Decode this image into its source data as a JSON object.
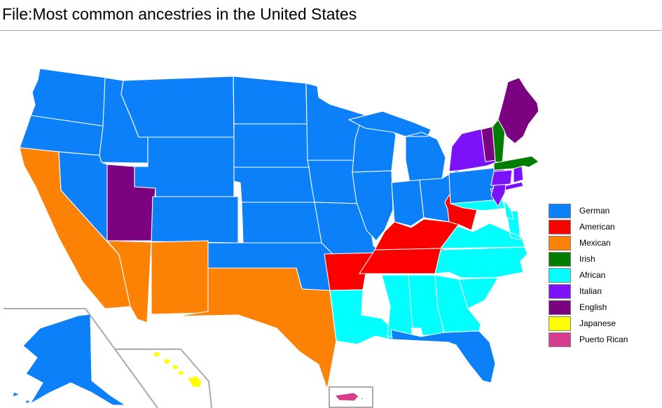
{
  "header": {
    "title": "File:Most common ancestries in the United States"
  },
  "legend": {
    "items": [
      {
        "label": "German",
        "color": "#0c80f8"
      },
      {
        "label": "American",
        "color": "#fc0000"
      },
      {
        "label": "Mexican",
        "color": "#fc8205"
      },
      {
        "label": "Irish",
        "color": "#027d02"
      },
      {
        "label": "African",
        "color": "#00ffff"
      },
      {
        "label": "Italian",
        "color": "#7c12fa"
      },
      {
        "label": "English",
        "color": "#7b0382"
      },
      {
        "label": "Japanese",
        "color": "#fefe00"
      },
      {
        "label": "Puerto Rican",
        "color": "#d63d8d"
      }
    ]
  },
  "map": {
    "type": "choropleth",
    "state_border_color": "#ffffff",
    "inset_line_color": "#aaaaaa",
    "states": [
      {
        "code": "WA",
        "name": "Washington",
        "ancestry": "German"
      },
      {
        "code": "OR",
        "name": "Oregon",
        "ancestry": "German"
      },
      {
        "code": "CA",
        "name": "California",
        "ancestry": "Mexican"
      },
      {
        "code": "NV",
        "name": "Nevada",
        "ancestry": "German"
      },
      {
        "code": "ID",
        "name": "Idaho",
        "ancestry": "German"
      },
      {
        "code": "MT",
        "name": "Montana",
        "ancestry": "German"
      },
      {
        "code": "WY",
        "name": "Wyoming",
        "ancestry": "German"
      },
      {
        "code": "UT",
        "name": "Utah",
        "ancestry": "English"
      },
      {
        "code": "CO",
        "name": "Colorado",
        "ancestry": "German"
      },
      {
        "code": "AZ",
        "name": "Arizona",
        "ancestry": "Mexican"
      },
      {
        "code": "NM",
        "name": "New Mexico",
        "ancestry": "Mexican"
      },
      {
        "code": "ND",
        "name": "North Dakota",
        "ancestry": "German"
      },
      {
        "code": "SD",
        "name": "South Dakota",
        "ancestry": "German"
      },
      {
        "code": "NE",
        "name": "Nebraska",
        "ancestry": "German"
      },
      {
        "code": "KS",
        "name": "Kansas",
        "ancestry": "German"
      },
      {
        "code": "OK",
        "name": "Oklahoma",
        "ancestry": "German"
      },
      {
        "code": "TX",
        "name": "Texas",
        "ancestry": "Mexican"
      },
      {
        "code": "MN",
        "name": "Minnesota",
        "ancestry": "German"
      },
      {
        "code": "IA",
        "name": "Iowa",
        "ancestry": "German"
      },
      {
        "code": "MO",
        "name": "Missouri",
        "ancestry": "German"
      },
      {
        "code": "AR",
        "name": "Arkansas",
        "ancestry": "American"
      },
      {
        "code": "LA",
        "name": "Louisiana",
        "ancestry": "African"
      },
      {
        "code": "WI",
        "name": "Wisconsin",
        "ancestry": "German"
      },
      {
        "code": "IL",
        "name": "Illinois",
        "ancestry": "German"
      },
      {
        "code": "MI",
        "name": "Michigan",
        "ancestry": "German"
      },
      {
        "code": "IN",
        "name": "Indiana",
        "ancestry": "German"
      },
      {
        "code": "OH",
        "name": "Ohio",
        "ancestry": "German"
      },
      {
        "code": "KY",
        "name": "Kentucky",
        "ancestry": "American"
      },
      {
        "code": "TN",
        "name": "Tennessee",
        "ancestry": "American"
      },
      {
        "code": "MS",
        "name": "Mississippi",
        "ancestry": "African"
      },
      {
        "code": "AL",
        "name": "Alabama",
        "ancestry": "African"
      },
      {
        "code": "GA",
        "name": "Georgia",
        "ancestry": "African"
      },
      {
        "code": "FL",
        "name": "Florida",
        "ancestry": "German"
      },
      {
        "code": "VA",
        "name": "Virginia",
        "ancestry": "African"
      },
      {
        "code": "WV",
        "name": "West Virginia",
        "ancestry": "American"
      },
      {
        "code": "NC",
        "name": "North Carolina",
        "ancestry": "African"
      },
      {
        "code": "SC",
        "name": "South Carolina",
        "ancestry": "African"
      },
      {
        "code": "PA",
        "name": "Pennsylvania",
        "ancestry": "German"
      },
      {
        "code": "NY",
        "name": "New York",
        "ancestry": "Italian"
      },
      {
        "code": "MD",
        "name": "Maryland",
        "ancestry": "African"
      },
      {
        "code": "DE",
        "name": "Delaware",
        "ancestry": "African"
      },
      {
        "code": "NJ",
        "name": "New Jersey",
        "ancestry": "Italian"
      },
      {
        "code": "CT",
        "name": "Connecticut",
        "ancestry": "Italian"
      },
      {
        "code": "RI",
        "name": "Rhode Island",
        "ancestry": "Italian"
      },
      {
        "code": "VT",
        "name": "Vermont",
        "ancestry": "English"
      },
      {
        "code": "NH",
        "name": "New Hampshire",
        "ancestry": "Irish"
      },
      {
        "code": "MA",
        "name": "Massachusetts",
        "ancestry": "Irish"
      },
      {
        "code": "ME",
        "name": "Maine",
        "ancestry": "English"
      },
      {
        "code": "AK",
        "name": "Alaska",
        "ancestry": "German"
      },
      {
        "code": "HI",
        "name": "Hawaii",
        "ancestry": "Japanese"
      },
      {
        "code": "PR",
        "name": "Puerto Rico",
        "ancestry": "Puerto Rican"
      }
    ]
  }
}
